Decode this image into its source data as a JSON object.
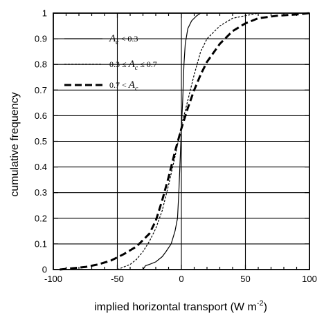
{
  "chart_data": {
    "type": "line",
    "xlabel": "implied horizontal transport (W m",
    "xlabel_sup": "-2",
    "xlabel_close": ")",
    "ylabel": "cumulative frequency",
    "xlim": [
      -100,
      100
    ],
    "ylim": [
      0,
      1
    ],
    "x_ticks": [
      -100,
      -50,
      0,
      50,
      100
    ],
    "x_tick_labels": [
      "-100",
      "-50",
      "0",
      "50",
      "100"
    ],
    "y_ticks": [
      0,
      0.1,
      0.2,
      0.3,
      0.4,
      0.5,
      0.6,
      0.7,
      0.8,
      0.9,
      1
    ],
    "y_tick_labels": [
      "0",
      "0.1",
      "0.2",
      "0.3",
      "0.4",
      "0.5",
      "0.6",
      "0.7",
      "0.8",
      "0.9",
      "1"
    ],
    "grid": "horizontal lines at every y tick; vertical lines at x = -50, 0, 50",
    "legend_position": "top-left",
    "legend": [
      {
        "pre": "",
        "var": "A",
        "sub": "c",
        "post": " < 0.3",
        "style": "solid"
      },
      {
        "pre": "0.3 ≤ ",
        "var": "A",
        "sub": "c",
        "post": " ≤ 0.7",
        "style": "dotted"
      },
      {
        "pre": "0.7 < ",
        "var": "A",
        "sub": "c",
        "post": "",
        "style": "dashed"
      }
    ],
    "series": [
      {
        "style": "solid",
        "points": [
          [
            -30,
            0
          ],
          [
            -28,
            0.015
          ],
          [
            -25,
            0.02
          ],
          [
            -20,
            0.03
          ],
          [
            -15,
            0.05
          ],
          [
            -12,
            0.07
          ],
          [
            -8,
            0.1
          ],
          [
            -5,
            0.15
          ],
          [
            -3,
            0.2
          ],
          [
            -2,
            0.3
          ],
          [
            -1,
            0.42
          ],
          [
            0,
            0.55
          ],
          [
            1,
            0.66
          ],
          [
            2,
            0.8
          ],
          [
            3,
            0.88
          ],
          [
            5,
            0.94
          ],
          [
            8,
            0.97
          ],
          [
            12,
            0.99
          ],
          [
            15,
            1.0
          ]
        ]
      },
      {
        "style": "dotted",
        "points": [
          [
            -50,
            0
          ],
          [
            -45,
            0.01
          ],
          [
            -40,
            0.02
          ],
          [
            -35,
            0.04
          ],
          [
            -30,
            0.07
          ],
          [
            -25,
            0.11
          ],
          [
            -20,
            0.16
          ],
          [
            -15,
            0.23
          ],
          [
            -10,
            0.33
          ],
          [
            -5,
            0.44
          ],
          [
            0,
            0.56
          ],
          [
            5,
            0.66
          ],
          [
            10,
            0.76
          ],
          [
            15,
            0.85
          ],
          [
            20,
            0.9
          ],
          [
            30,
            0.95
          ],
          [
            40,
            0.98
          ],
          [
            50,
            0.99
          ],
          [
            60,
            1.0
          ]
        ]
      },
      {
        "style": "dashed",
        "points": [
          [
            -95,
            0
          ],
          [
            -85,
            0.005
          ],
          [
            -75,
            0.01
          ],
          [
            -65,
            0.02
          ],
          [
            -55,
            0.035
          ],
          [
            -45,
            0.06
          ],
          [
            -35,
            0.09
          ],
          [
            -25,
            0.14
          ],
          [
            -20,
            0.19
          ],
          [
            -15,
            0.27
          ],
          [
            -10,
            0.36
          ],
          [
            -5,
            0.46
          ],
          [
            0,
            0.55
          ],
          [
            5,
            0.63
          ],
          [
            10,
            0.7
          ],
          [
            15,
            0.76
          ],
          [
            20,
            0.81
          ],
          [
            30,
            0.88
          ],
          [
            40,
            0.93
          ],
          [
            50,
            0.96
          ],
          [
            60,
            0.98
          ],
          [
            75,
            0.99
          ],
          [
            90,
            0.995
          ],
          [
            100,
            1.0
          ]
        ]
      }
    ]
  }
}
